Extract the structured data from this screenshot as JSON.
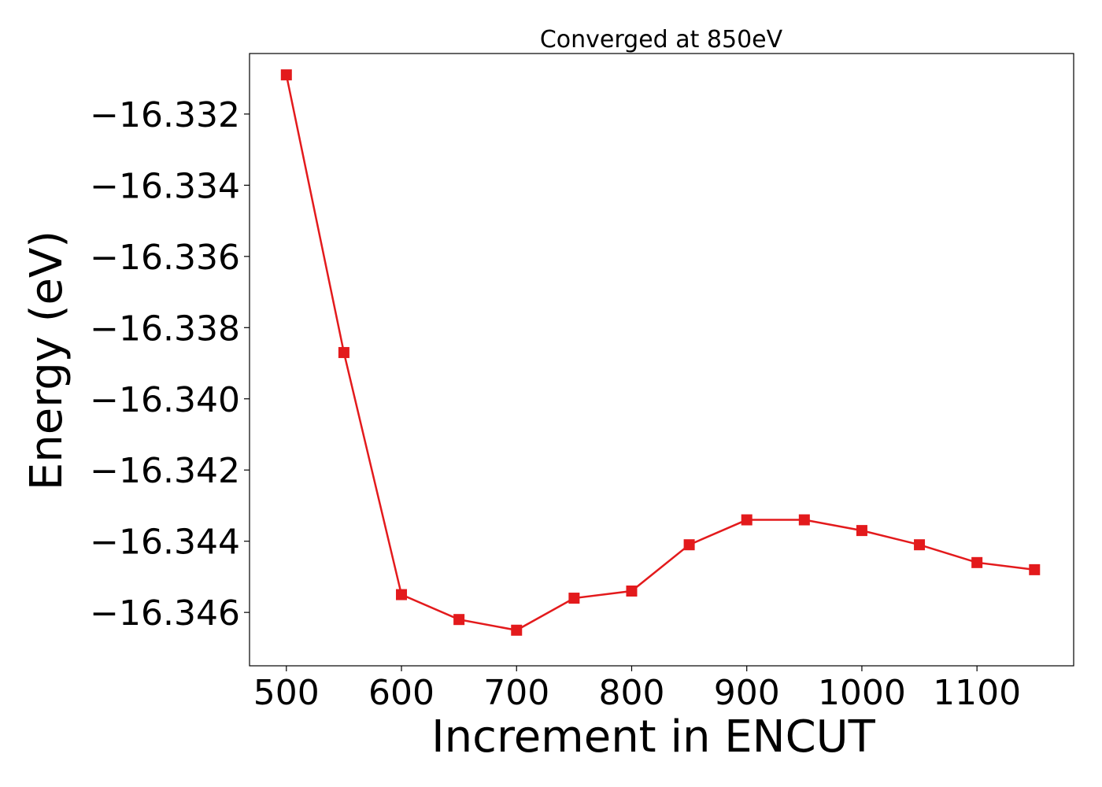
{
  "chart_data": {
    "type": "line",
    "title": "Converged at 850eV",
    "xlabel": "Increment in ENCUT",
    "ylabel": "Energy (eV)",
    "x": [
      500,
      550,
      600,
      650,
      700,
      750,
      800,
      850,
      900,
      950,
      1000,
      1050,
      1100,
      1150
    ],
    "series": [
      {
        "values": [
          -16.3309,
          -16.3387,
          -16.3455,
          -16.3462,
          -16.3465,
          -16.3456,
          -16.3454,
          -16.3441,
          -16.3434,
          -16.3434,
          -16.3437,
          -16.3441,
          -16.3446,
          -16.3448
        ],
        "color": "#e31a1c",
        "marker": "square"
      }
    ],
    "xlim": [
      468,
      1184
    ],
    "ylim": [
      -16.3475,
      -16.3303
    ],
    "xticks": [
      500,
      600,
      700,
      800,
      900,
      1000,
      1100
    ],
    "xtick_labels": [
      "500",
      "600",
      "700",
      "800",
      "900",
      "1000",
      "1100"
    ],
    "yticks": [
      -16.332,
      -16.334,
      -16.336,
      -16.338,
      -16.34,
      -16.342,
      -16.344,
      -16.346
    ],
    "ytick_labels": [
      "−16.332",
      "−16.334",
      "−16.336",
      "−16.338",
      "−16.340",
      "−16.342",
      "−16.344",
      "−16.346"
    ],
    "grid": false,
    "legend": "none"
  }
}
